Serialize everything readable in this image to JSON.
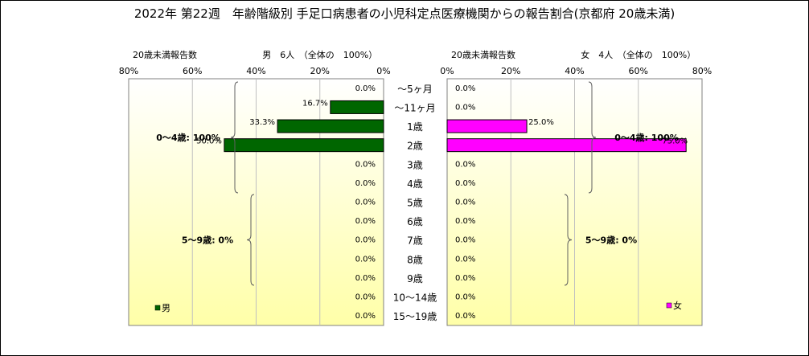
{
  "title": "2022年 第22週　年齢階級別 手足口病患者の小児科定点医療機関からの報告割合(京都府 20歳未満)",
  "colors": {
    "male": "#006600",
    "female": "#ff00ff",
    "plot_bg_top": "#ffffff",
    "plot_bg_bottom": "#ffffa8",
    "grid": "#c0c0c0"
  },
  "chart_data": [
    {
      "type": "bar",
      "orientation": "horizontal",
      "direction": "right-to-left",
      "header_label": "20歳未満報告数",
      "header_total": "男　6人　（全体の　100%）",
      "categories": [
        "～5ヶ月",
        "～11ヶ月",
        "1歳",
        "2歳",
        "3歳",
        "4歳",
        "5歳",
        "6歳",
        "7歳",
        "8歳",
        "9歳",
        "10～14歳",
        "15～19歳"
      ],
      "series": [
        {
          "name": "男",
          "values": [
            0,
            16.7,
            33.3,
            50.0,
            0,
            0,
            0,
            0,
            0,
            0,
            0,
            0,
            0
          ]
        }
      ],
      "data_labels": [
        "0.0%",
        "16.7%",
        "33.3%",
        "50.0%",
        "0.0%",
        "0.0%",
        "0.0%",
        "0.0%",
        "0.0%",
        "0.0%",
        "0.0%",
        "0.0%",
        "0.0%"
      ],
      "xlim": [
        0,
        80
      ],
      "x_ticks": [
        "80%",
        "60%",
        "40%",
        "20%",
        "0%"
      ],
      "grid": true,
      "legend_position": "bottom-left",
      "annotations": [
        "0～4歳: 100%",
        "5～9歳: 0%"
      ]
    },
    {
      "type": "bar",
      "orientation": "horizontal",
      "direction": "left-to-right",
      "header_label": "20歳未満報告数",
      "header_total": "女　4人　（全体の　100%）",
      "categories": [
        "～5ヶ月",
        "～11ヶ月",
        "1歳",
        "2歳",
        "3歳",
        "4歳",
        "5歳",
        "6歳",
        "7歳",
        "8歳",
        "9歳",
        "10～14歳",
        "15～19歳"
      ],
      "series": [
        {
          "name": "女",
          "values": [
            0,
            0,
            25.0,
            75.0,
            0,
            0,
            0,
            0,
            0,
            0,
            0,
            0,
            0
          ]
        }
      ],
      "data_labels": [
        "0.0%",
        "0.0%",
        "25.0%",
        "75.0%",
        "0.0%",
        "0.0%",
        "0.0%",
        "0.0%",
        "0.0%",
        "0.0%",
        "0.0%",
        "0.0%",
        "0.0%"
      ],
      "xlim": [
        0,
        80
      ],
      "x_ticks": [
        "0%",
        "20%",
        "40%",
        "60%",
        "80%"
      ],
      "grid": true,
      "legend_position": "bottom-right",
      "annotations": [
        "0～4歳: 100%",
        "5～9歳: 0%"
      ]
    }
  ]
}
